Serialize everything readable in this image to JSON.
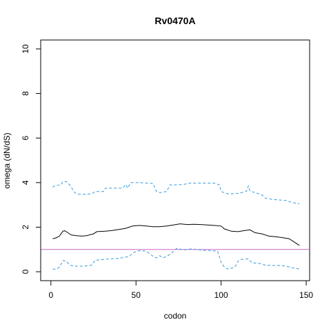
{
  "chart_data": {
    "type": "line",
    "title": "Rv0470A",
    "xlabel": "codon",
    "ylabel": "omega (dN/dS)",
    "xlim": [
      -6,
      152
    ],
    "ylim": [
      -0.4,
      10.4
    ],
    "x_ticks": [
      0,
      50,
      100,
      150
    ],
    "y_ticks": [
      0,
      2,
      4,
      6,
      8,
      10
    ],
    "reference_line": {
      "y": 1,
      "color": "#cc66cc"
    },
    "colors": {
      "estimate": "#000000",
      "bounds": "#3399dd"
    },
    "series": [
      {
        "role": "estimate",
        "style": "solid",
        "points": [
          [
            1,
            1.48
          ],
          [
            3,
            1.52
          ],
          [
            5,
            1.6
          ],
          [
            7,
            1.82
          ],
          [
            8,
            1.84
          ],
          [
            10,
            1.75
          ],
          [
            12,
            1.65
          ],
          [
            15,
            1.62
          ],
          [
            18,
            1.6
          ],
          [
            21,
            1.62
          ],
          [
            25,
            1.7
          ],
          [
            27,
            1.8
          ],
          [
            32,
            1.82
          ],
          [
            36,
            1.85
          ],
          [
            40,
            1.9
          ],
          [
            44,
            1.95
          ],
          [
            48,
            2.05
          ],
          [
            52,
            2.08
          ],
          [
            56,
            2.05
          ],
          [
            60,
            2.02
          ],
          [
            64,
            2.02
          ],
          [
            68,
            2.05
          ],
          [
            72,
            2.1
          ],
          [
            76,
            2.15
          ],
          [
            80,
            2.12
          ],
          [
            84,
            2.13
          ],
          [
            88,
            2.12
          ],
          [
            92,
            2.1
          ],
          [
            96,
            2.08
          ],
          [
            100,
            2.05
          ],
          [
            102,
            1.92
          ],
          [
            106,
            1.82
          ],
          [
            110,
            1.8
          ],
          [
            114,
            1.85
          ],
          [
            117,
            1.88
          ],
          [
            120,
            1.75
          ],
          [
            124,
            1.7
          ],
          [
            128,
            1.6
          ],
          [
            132,
            1.57
          ],
          [
            136,
            1.53
          ],
          [
            140,
            1.48
          ],
          [
            144,
            1.28
          ],
          [
            146,
            1.18
          ]
        ]
      },
      {
        "role": "upper",
        "style": "dashed",
        "points": [
          [
            1,
            3.8
          ],
          [
            3,
            3.88
          ],
          [
            6,
            3.9
          ],
          [
            7,
            4.05
          ],
          [
            9,
            4.05
          ],
          [
            11,
            3.9
          ],
          [
            14,
            3.55
          ],
          [
            16,
            3.48
          ],
          [
            20,
            3.48
          ],
          [
            24,
            3.5
          ],
          [
            26,
            3.6
          ],
          [
            31,
            3.6
          ],
          [
            32,
            3.75
          ],
          [
            38,
            3.75
          ],
          [
            42,
            3.75
          ],
          [
            44,
            3.92
          ],
          [
            45,
            3.75
          ],
          [
            47,
            4.0
          ],
          [
            52,
            4.0
          ],
          [
            56,
            3.98
          ],
          [
            60,
            3.96
          ],
          [
            62,
            3.6
          ],
          [
            64,
            3.55
          ],
          [
            68,
            3.6
          ],
          [
            70,
            3.9
          ],
          [
            74,
            3.9
          ],
          [
            78,
            3.92
          ],
          [
            82,
            3.98
          ],
          [
            90,
            3.98
          ],
          [
            94,
            3.98
          ],
          [
            96,
            3.98
          ],
          [
            99,
            3.9
          ],
          [
            100,
            3.6
          ],
          [
            104,
            3.5
          ],
          [
            108,
            3.5
          ],
          [
            112,
            3.55
          ],
          [
            115,
            3.62
          ],
          [
            116,
            3.85
          ],
          [
            117,
            3.62
          ],
          [
            120,
            3.55
          ],
          [
            124,
            3.45
          ],
          [
            126,
            3.3
          ],
          [
            130,
            3.25
          ],
          [
            134,
            3.22
          ],
          [
            138,
            3.2
          ],
          [
            142,
            3.1
          ],
          [
            146,
            3.05
          ]
        ]
      },
      {
        "role": "lower",
        "style": "dashed",
        "points": [
          [
            1,
            0.12
          ],
          [
            3,
            0.12
          ],
          [
            5,
            0.2
          ],
          [
            7,
            0.5
          ],
          [
            9,
            0.48
          ],
          [
            11,
            0.3
          ],
          [
            14,
            0.25
          ],
          [
            20,
            0.25
          ],
          [
            24,
            0.3
          ],
          [
            26,
            0.52
          ],
          [
            31,
            0.55
          ],
          [
            36,
            0.58
          ],
          [
            40,
            0.6
          ],
          [
            44,
            0.66
          ],
          [
            46,
            0.68
          ],
          [
            48,
            0.85
          ],
          [
            52,
            0.95
          ],
          [
            56,
            0.92
          ],
          [
            60,
            0.7
          ],
          [
            62,
            0.62
          ],
          [
            64,
            0.72
          ],
          [
            66,
            0.62
          ],
          [
            70,
            0.78
          ],
          [
            74,
            1.05
          ],
          [
            78,
            0.98
          ],
          [
            82,
            1.02
          ],
          [
            86,
            1.0
          ],
          [
            90,
            0.96
          ],
          [
            94,
            0.95
          ],
          [
            98,
            0.92
          ],
          [
            100,
            0.42
          ],
          [
            102,
            0.2
          ],
          [
            104,
            0.12
          ],
          [
            108,
            0.2
          ],
          [
            110,
            0.48
          ],
          [
            112,
            0.55
          ],
          [
            116,
            0.58
          ],
          [
            118,
            0.4
          ],
          [
            122,
            0.38
          ],
          [
            126,
            0.3
          ],
          [
            130,
            0.28
          ],
          [
            134,
            0.28
          ],
          [
            138,
            0.25
          ],
          [
            142,
            0.18
          ],
          [
            146,
            0.12
          ]
        ]
      }
    ]
  }
}
